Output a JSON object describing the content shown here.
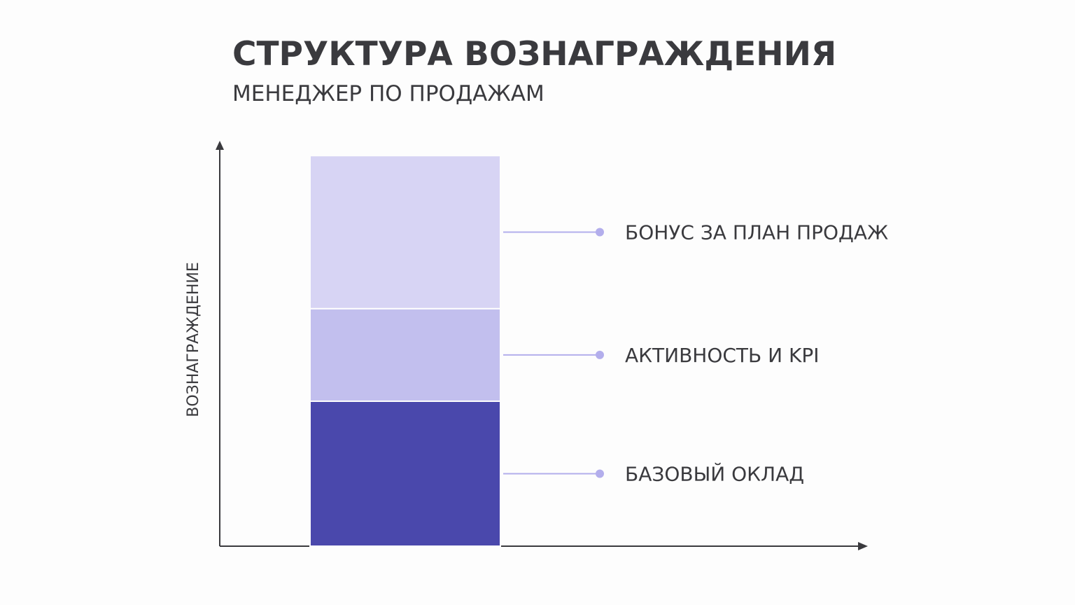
{
  "chart_data": {
    "type": "stacked_bar",
    "title": "СТРУКТУРА ВОЗНАГРАЖДЕНИЯ",
    "subtitle": "МЕНЕДЖЕР ПО ПРОДАЖАМ",
    "y_label": "ВОЗНАГРАЖДЕНИЕ",
    "categories": [
      null
    ],
    "series": [
      {
        "name": "БАЗОВЫЙ ОКЛАД",
        "color": "#4a48ac",
        "values": [
          36
        ]
      },
      {
        "name": "АКТИВНОСТЬ И KPI",
        "color": "#c2bfee",
        "values": [
          23
        ]
      },
      {
        "name": "БОНУС ЗА ПЛАН ПРОДАЖ",
        "color": "#d7d4f4",
        "values": [
          38
        ]
      }
    ],
    "ylim": [
      0,
      100
    ]
  }
}
